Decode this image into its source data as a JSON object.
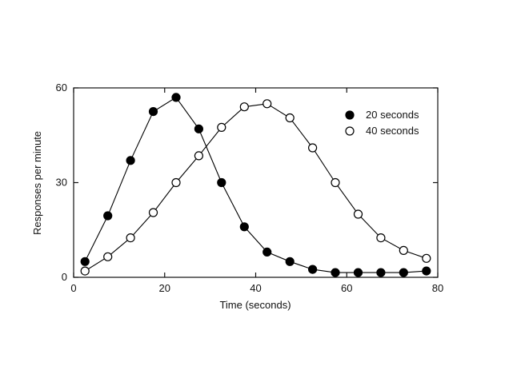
{
  "chart_data": {
    "type": "line",
    "xlabel": "Time (seconds)",
    "ylabel": "Responses per minute",
    "xlim": [
      0,
      80
    ],
    "ylim": [
      0,
      60
    ],
    "xticks": [
      0,
      20,
      40,
      60,
      80
    ],
    "yticks": [
      0,
      30,
      60
    ],
    "grid": false,
    "legend_position": "top-right",
    "x": [
      2.5,
      7.5,
      12.5,
      17.5,
      22.5,
      27.5,
      32.5,
      37.5,
      42.5,
      47.5,
      52.5,
      57.5,
      62.5,
      67.5,
      72.5,
      77.5
    ],
    "series": [
      {
        "name": "20 seconds",
        "marker": "filled-circle",
        "color": "#000000",
        "values": [
          5,
          19.5,
          37,
          52.5,
          57,
          47,
          30,
          16,
          8,
          5,
          2.5,
          1.5,
          1.5,
          1.5,
          1.5,
          2
        ]
      },
      {
        "name": "40 seconds",
        "marker": "open-circle",
        "color": "#000000",
        "values": [
          2,
          6.5,
          12.5,
          20.5,
          30,
          38.5,
          47.5,
          54,
          55,
          50.5,
          41,
          30,
          20,
          12.5,
          8.5,
          6
        ]
      }
    ]
  }
}
